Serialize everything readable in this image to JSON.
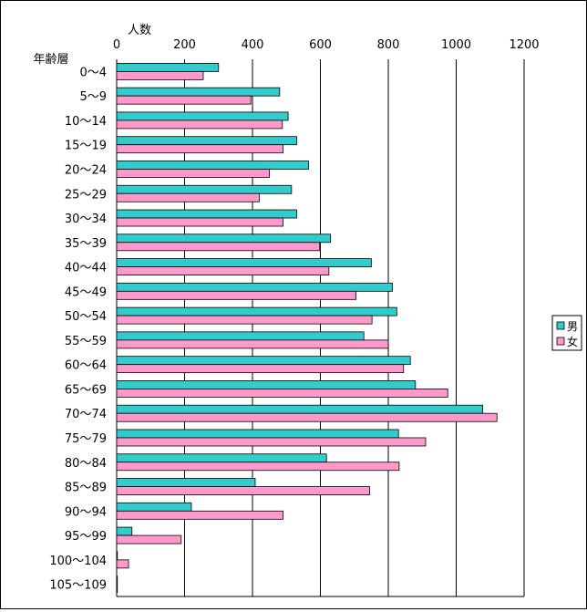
{
  "chart_data": {
    "type": "bar",
    "orientation": "horizontal",
    "title": "",
    "xlabel": "人数",
    "ylabel": "年齢層",
    "xlim": [
      0,
      1200
    ],
    "x_ticks": [
      "0",
      "200",
      "400",
      "600",
      "800",
      "1000",
      "1200"
    ],
    "x_tick_values": [
      0,
      200,
      400,
      600,
      800,
      1000,
      1200
    ],
    "grid": "vertical",
    "legend_position": "right",
    "categories": [
      "0～4",
      "5～9",
      "10～14",
      "15～19",
      "20～24",
      "25～29",
      "30～34",
      "35～39",
      "40～44",
      "45～49",
      "50～54",
      "55～59",
      "60～64",
      "65～69",
      "70～74",
      "75～79",
      "80～84",
      "85～89",
      "90～94",
      "95～99",
      "100～104",
      "105～109"
    ],
    "series": [
      {
        "name": "男",
        "color": "#33CCCC",
        "values": [
          300,
          480,
          505,
          530,
          565,
          515,
          530,
          630,
          750,
          812,
          825,
          728,
          865,
          880,
          1078,
          830,
          618,
          408,
          220,
          45,
          2,
          2
        ]
      },
      {
        "name": "女",
        "color": "#FF99CC",
        "values": [
          255,
          395,
          488,
          490,
          450,
          420,
          490,
          598,
          625,
          705,
          752,
          800,
          845,
          975,
          1120,
          910,
          832,
          745,
          490,
          190,
          35,
          2
        ]
      }
    ]
  }
}
